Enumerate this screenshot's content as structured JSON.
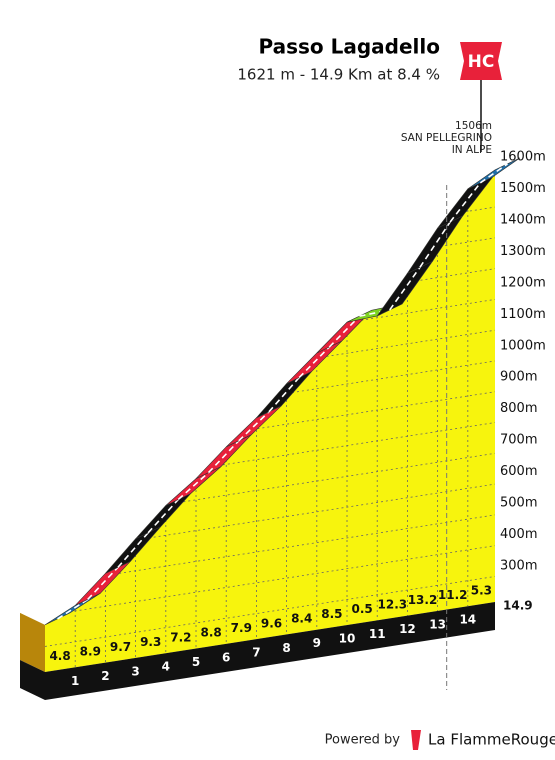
{
  "chart_data": {
    "type": "climb-profile",
    "title": "Passo Lagadello",
    "subtitle": "1621 m - 14.9 Km at 8.4 %",
    "category_badge": "HC",
    "summit_marker": {
      "km": 13.3,
      "labels": [
        "1506m",
        "SAN PELLEGRINO",
        "IN ALPE"
      ]
    },
    "x": [
      0,
      1,
      2,
      3,
      4,
      5,
      6,
      7,
      8,
      9,
      10,
      11,
      12,
      13,
      14,
      14.9
    ],
    "elevation": [
      370,
      418,
      507,
      604,
      697,
      769,
      857,
      936,
      1032,
      1116,
      1201,
      1206,
      1329,
      1461,
      1573,
      1621
    ],
    "gradients": [
      4.8,
      8.9,
      9.7,
      9.3,
      7.2,
      8.8,
      7.9,
      9.6,
      8.4,
      8.5,
      0.5,
      12.3,
      13.2,
      11.2,
      5.3
    ],
    "gradient_colors": [
      "#1f6fa8",
      "#e8213a",
      "#111111",
      "#111111",
      "#e8213a",
      "#e8213a",
      "#e8213a",
      "#111111",
      "#e8213a",
      "#e8213a",
      "#7ed321",
      "#111111",
      "#111111",
      "#111111",
      "#1f6fa8"
    ],
    "yticks": [
      {
        "value": 300,
        "label": "300m"
      },
      {
        "value": 400,
        "label": "400m"
      },
      {
        "value": 500,
        "label": "500m"
      },
      {
        "value": 600,
        "label": "600m"
      },
      {
        "value": 700,
        "label": "700m"
      },
      {
        "value": 800,
        "label": "800m"
      },
      {
        "value": 900,
        "label": "900m"
      },
      {
        "value": 1000,
        "label": "1000m"
      },
      {
        "value": 1100,
        "label": "1100m"
      },
      {
        "value": 1200,
        "label": "1200m"
      },
      {
        "value": 1300,
        "label": "1300m"
      },
      {
        "value": 1400,
        "label": "1400m"
      },
      {
        "value": 1500,
        "label": "1500m"
      },
      {
        "value": 1600,
        "label": "1600m"
      }
    ],
    "footer": {
      "prefix": "Powered by",
      "brand": "La FlammeRouge"
    }
  }
}
